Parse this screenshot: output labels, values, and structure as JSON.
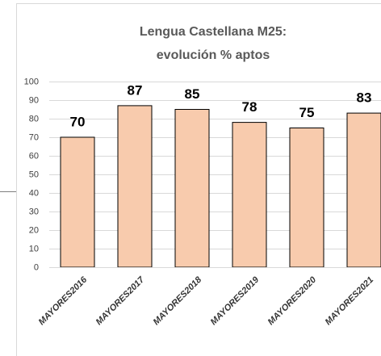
{
  "chart_data": {
    "type": "bar",
    "title": [
      "Lengua Castellana M25:",
      "evolución % aptos"
    ],
    "categories": [
      "MAYORES2016",
      "MAYORES2017",
      "MAYORES2018",
      "MAYORES2019",
      "MAYORES2020",
      "MAYORES2021"
    ],
    "values": [
      70,
      87,
      85,
      78,
      75,
      83
    ],
    "color": "#f8cbad",
    "ylim": [
      0,
      100
    ],
    "yticks": [
      0,
      10,
      20,
      30,
      40,
      50,
      60,
      70,
      80,
      90,
      100
    ],
    "grid": true
  }
}
